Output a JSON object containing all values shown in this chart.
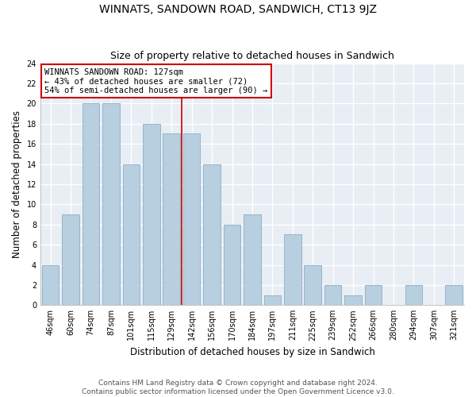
{
  "title": "WINNATS, SANDOWN ROAD, SANDWICH, CT13 9JZ",
  "subtitle": "Size of property relative to detached houses in Sandwich",
  "xlabel": "Distribution of detached houses by size in Sandwich",
  "ylabel": "Number of detached properties",
  "categories": [
    "46sqm",
    "60sqm",
    "74sqm",
    "87sqm",
    "101sqm",
    "115sqm",
    "129sqm",
    "142sqm",
    "156sqm",
    "170sqm",
    "184sqm",
    "197sqm",
    "211sqm",
    "225sqm",
    "239sqm",
    "252sqm",
    "266sqm",
    "280sqm",
    "294sqm",
    "307sqm",
    "321sqm"
  ],
  "all_values": [
    4,
    9,
    20,
    20,
    14,
    18,
    17,
    17,
    14,
    8,
    9,
    1,
    7,
    4,
    2,
    1,
    2,
    0,
    2,
    0,
    2
  ],
  "bar_color": "#b8cfe0",
  "bar_edge_color": "#8aaec8",
  "grid_color": "#c8d4dc",
  "vline_x_index": 6,
  "vline_color": "#cc0000",
  "annotation_title": "WINNATS SANDOWN ROAD: 127sqm",
  "annotation_line1": "← 43% of detached houses are smaller (72)",
  "annotation_line2": "54% of semi-detached houses are larger (90) →",
  "annotation_box_color": "#ffffff",
  "annotation_box_edge": "#cc0000",
  "ylim": [
    0,
    24
  ],
  "yticks": [
    0,
    2,
    4,
    6,
    8,
    10,
    12,
    14,
    16,
    18,
    20,
    22,
    24
  ],
  "footer_line1": "Contains HM Land Registry data © Crown copyright and database right 2024.",
  "footer_line2": "Contains public sector information licensed under the Open Government Licence v3.0.",
  "title_fontsize": 10,
  "subtitle_fontsize": 9,
  "xlabel_fontsize": 8.5,
  "ylabel_fontsize": 8.5,
  "tick_fontsize": 7,
  "footer_fontsize": 6.5,
  "annotation_fontsize": 7.5,
  "bg_color": "#e8eef4"
}
